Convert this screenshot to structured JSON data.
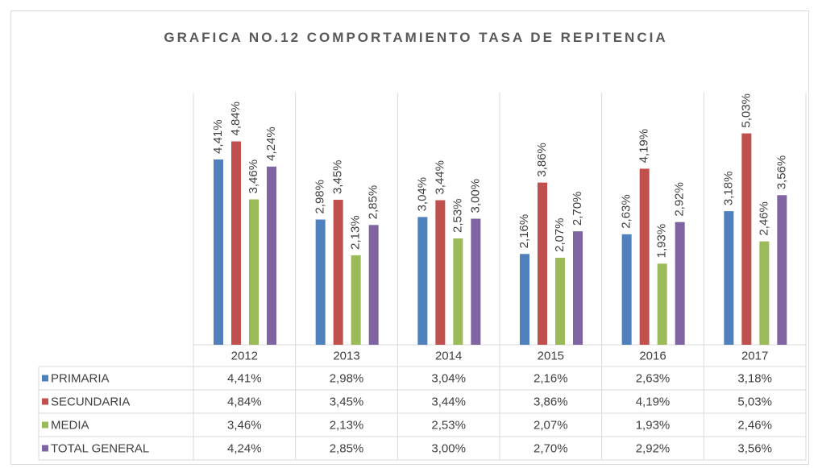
{
  "chart_data": {
    "type": "bar",
    "title": "GRAFICA NO.12  COMPORTAMIENTO TASA DE REPITENCIA",
    "categories": [
      "2012",
      "2013",
      "2014",
      "2015",
      "2016",
      "2017"
    ],
    "ylim": [
      0,
      6
    ],
    "series": [
      {
        "name": "PRIMARIA",
        "color": "#4f81bd",
        "values": [
          4.41,
          2.98,
          3.04,
          2.16,
          2.63,
          3.18
        ],
        "value_labels": [
          "4,41%",
          "2,98%",
          "3,04%",
          "2,16%",
          "2,63%",
          "3,18%"
        ]
      },
      {
        "name": "SECUNDARIA",
        "color": "#c0504d",
        "values": [
          4.84,
          3.45,
          3.44,
          3.86,
          4.19,
          5.03
        ],
        "value_labels": [
          "4,84%",
          "3,45%",
          "3,44%",
          "3,86%",
          "4,19%",
          "5,03%"
        ]
      },
      {
        "name": "MEDIA",
        "color": "#9bbb59",
        "values": [
          3.46,
          2.13,
          2.53,
          2.07,
          1.93,
          2.46
        ],
        "value_labels": [
          "3,46%",
          "2,13%",
          "2,53%",
          "2,07%",
          "1,93%",
          "2,46%"
        ]
      },
      {
        "name": "TOTAL GENERAL",
        "color": "#8064a2",
        "values": [
          4.24,
          2.85,
          3.0,
          2.7,
          2.92,
          3.56
        ],
        "value_labels": [
          "4,24%",
          "2,85%",
          "3,00%",
          "2,70%",
          "2,92%",
          "3,56%"
        ]
      }
    ]
  }
}
